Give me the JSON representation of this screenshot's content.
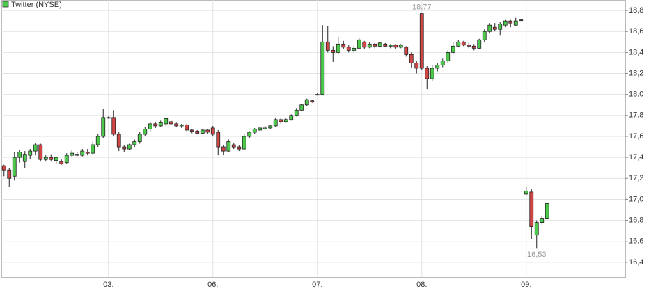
{
  "chart_data": {
    "type": "candlestick",
    "name": "Twitter (NYSE)",
    "up_color": "#4cc94c",
    "down_color": "#d14545",
    "grid": true,
    "categories": [
      null,
      null,
      null,
      null,
      null,
      null,
      null,
      null,
      null,
      null,
      null,
      null,
      null,
      null,
      null,
      null,
      null,
      null,
      null,
      null,
      "03.",
      null,
      null,
      null,
      null,
      null,
      null,
      null,
      null,
      null,
      null,
      null,
      null,
      null,
      null,
      null,
      null,
      null,
      null,
      null,
      "06.",
      null,
      null,
      null,
      null,
      null,
      null,
      null,
      null,
      null,
      null,
      null,
      null,
      null,
      null,
      null,
      null,
      null,
      null,
      null,
      "07.",
      null,
      null,
      null,
      null,
      null,
      null,
      null,
      null,
      null,
      null,
      null,
      null,
      null,
      null,
      null,
      null,
      null,
      null,
      null,
      "08.",
      null,
      null,
      null,
      null,
      null,
      null,
      null,
      null,
      null,
      null,
      null,
      null,
      null,
      null,
      null,
      null,
      null,
      null,
      null,
      "09.",
      null,
      null,
      null,
      null
    ],
    "open": [
      17.32,
      17.28,
      17.22,
      17.4,
      17.36,
      17.42,
      17.46,
      17.52,
      17.38,
      17.4,
      17.37,
      17.36,
      17.35,
      17.42,
      17.42,
      17.42,
      17.45,
      17.44,
      17.52,
      17.6,
      17.78,
      17.78,
      17.62,
      17.5,
      17.48,
      17.52,
      17.55,
      17.62,
      17.67,
      17.72,
      17.7,
      17.72,
      17.74,
      17.72,
      17.7,
      17.71,
      17.66,
      17.65,
      17.63,
      17.66,
      17.68,
      17.64,
      17.5,
      17.46,
      17.52,
      17.5,
      17.48,
      17.6,
      17.64,
      17.66,
      17.67,
      17.68,
      17.7,
      17.76,
      17.74,
      17.76,
      17.8,
      17.85,
      17.9,
      17.94,
      18.0,
      18.0,
      18.5,
      18.42,
      18.4,
      18.48,
      18.45,
      18.42,
      18.44,
      18.5,
      18.45,
      18.48,
      18.46,
      18.48,
      18.46,
      18.47,
      18.45,
      18.45,
      18.38,
      18.3,
      18.77,
      18.25,
      18.15,
      18.25,
      18.28,
      18.32,
      18.4,
      18.46,
      18.5,
      18.47,
      18.46,
      18.44,
      18.52,
      18.6,
      18.64,
      18.62,
      18.66,
      18.7,
      18.66,
      18.71,
      17.05,
      17.07,
      16.66,
      16.78,
      16.82
    ],
    "high": [
      17.33,
      17.3,
      17.45,
      17.47,
      17.46,
      17.48,
      17.54,
      17.53,
      17.42,
      17.43,
      17.41,
      17.38,
      17.44,
      17.47,
      17.45,
      17.48,
      17.48,
      17.55,
      17.62,
      17.86,
      17.79,
      17.85,
      17.64,
      17.52,
      17.53,
      17.57,
      17.64,
      17.69,
      17.74,
      17.74,
      17.75,
      17.78,
      17.75,
      17.73,
      17.72,
      17.72,
      17.67,
      17.66,
      17.67,
      17.67,
      17.7,
      17.66,
      17.52,
      17.57,
      17.54,
      17.52,
      17.62,
      17.65,
      17.68,
      17.69,
      17.7,
      17.71,
      17.78,
      17.78,
      17.77,
      17.81,
      17.87,
      17.91,
      17.96,
      17.95,
      18.01,
      18.66,
      18.65,
      18.46,
      18.55,
      18.51,
      18.47,
      18.46,
      18.54,
      18.51,
      18.5,
      18.49,
      18.5,
      18.49,
      18.48,
      18.48,
      18.48,
      18.46,
      18.4,
      18.32,
      18.77,
      18.27,
      18.28,
      18.3,
      18.34,
      18.42,
      18.5,
      18.52,
      18.51,
      18.49,
      18.48,
      18.53,
      18.62,
      18.68,
      18.68,
      18.69,
      18.71,
      18.71,
      18.73,
      18.72,
      17.12,
      17.1,
      16.8,
      16.84,
      16.97
    ],
    "low": [
      17.22,
      17.12,
      17.18,
      17.35,
      17.3,
      17.38,
      17.42,
      17.36,
      17.36,
      17.36,
      17.34,
      17.33,
      17.34,
      17.4,
      17.41,
      17.41,
      17.42,
      17.43,
      17.5,
      17.58,
      17.77,
      17.6,
      17.46,
      17.45,
      17.47,
      17.5,
      17.53,
      17.6,
      17.65,
      17.68,
      17.69,
      17.7,
      17.71,
      17.69,
      17.68,
      17.64,
      17.63,
      17.62,
      17.62,
      17.62,
      17.6,
      17.42,
      17.42,
      17.45,
      17.48,
      17.46,
      17.47,
      17.58,
      17.62,
      17.65,
      17.66,
      17.67,
      17.69,
      17.72,
      17.73,
      17.75,
      17.79,
      17.84,
      17.89,
      17.92,
      17.99,
      17.99,
      18.4,
      18.31,
      18.38,
      18.43,
      18.4,
      18.4,
      18.43,
      18.43,
      18.44,
      18.44,
      18.45,
      18.45,
      18.44,
      18.43,
      18.44,
      18.36,
      18.25,
      18.2,
      18.23,
      18.05,
      18.13,
      18.22,
      18.26,
      18.3,
      18.38,
      18.45,
      18.46,
      18.44,
      18.42,
      18.43,
      18.5,
      18.58,
      18.6,
      18.56,
      18.64,
      18.64,
      18.65,
      18.7,
      17.04,
      16.62,
      16.53,
      16.76,
      16.81
    ],
    "close": [
      17.28,
      17.2,
      17.4,
      17.45,
      17.43,
      17.46,
      17.52,
      17.38,
      17.4,
      17.38,
      17.4,
      17.34,
      17.42,
      17.44,
      17.43,
      17.46,
      17.44,
      17.52,
      17.6,
      17.78,
      17.78,
      17.62,
      17.5,
      17.48,
      17.52,
      17.55,
      17.62,
      17.67,
      17.72,
      17.7,
      17.73,
      17.77,
      17.72,
      17.7,
      17.71,
      17.66,
      17.65,
      17.63,
      17.66,
      17.64,
      17.62,
      17.5,
      17.46,
      17.55,
      17.5,
      17.48,
      17.6,
      17.64,
      17.67,
      17.68,
      17.68,
      17.7,
      17.76,
      17.74,
      17.76,
      17.8,
      17.85,
      17.9,
      17.95,
      17.93,
      18.0,
      18.5,
      18.42,
      18.4,
      18.48,
      18.45,
      18.42,
      18.44,
      18.52,
      18.45,
      18.48,
      18.46,
      18.49,
      18.46,
      18.47,
      18.45,
      18.47,
      18.38,
      18.3,
      18.25,
      18.25,
      18.15,
      18.25,
      18.28,
      18.32,
      18.4,
      18.46,
      18.5,
      18.47,
      18.46,
      18.44,
      18.52,
      18.6,
      18.66,
      18.62,
      18.67,
      18.7,
      18.68,
      18.7,
      18.71,
      17.08,
      16.74,
      16.78,
      16.82,
      16.96
    ],
    "ylim": [
      16.26,
      18.9
    ],
    "yticks": [
      {
        "value": 16.4,
        "label": "16,4"
      },
      {
        "value": 16.6,
        "label": "16,6"
      },
      {
        "value": 16.8,
        "label": "16,8"
      },
      {
        "value": 17.0,
        "label": "17,0"
      },
      {
        "value": 17.2,
        "label": "17,2"
      },
      {
        "value": 17.4,
        "label": "17,4"
      },
      {
        "value": 17.6,
        "label": "17,6"
      },
      {
        "value": 17.8,
        "label": "17,8"
      },
      {
        "value": 18.0,
        "label": "18,0"
      },
      {
        "value": 18.2,
        "label": "18,2"
      },
      {
        "value": 18.4,
        "label": "18,4"
      },
      {
        "value": 18.6,
        "label": "18,6"
      },
      {
        "value": 18.8,
        "label": "18,8"
      }
    ],
    "annotations": [
      {
        "label": "18,77",
        "value": 18.77
      },
      {
        "label": "16,53",
        "value": 16.53
      }
    ]
  }
}
